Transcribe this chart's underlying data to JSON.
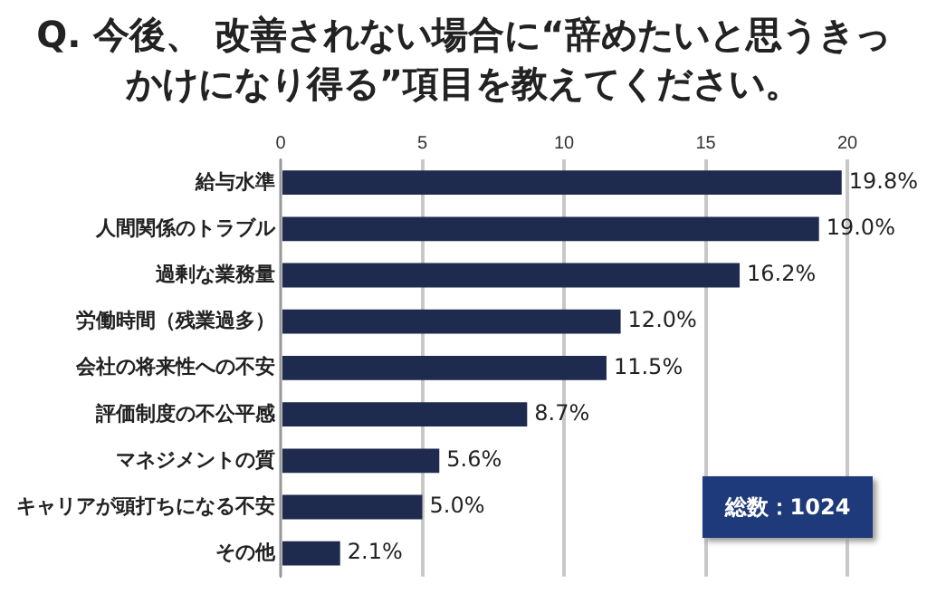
{
  "chart_data": {
    "type": "bar",
    "orientation": "horizontal",
    "title": "Q. 今後、 改善されない場合に“辞めたいと思うきっかけになり得る”項目を教えてください。",
    "categories": [
      "給与水準",
      "人間関係のトラブル",
      "過剰な業務量",
      "労働時間（残業過多）",
      "会社の将来性への不安",
      "評価制度の不公平感",
      "マネジメントの質",
      "キャリアが頭打ちになる不安",
      "その他"
    ],
    "values": [
      19.8,
      19.0,
      16.2,
      12.0,
      11.5,
      8.7,
      5.6,
      5.0,
      2.1
    ],
    "value_labels": [
      "19.8%",
      "19.0%",
      "16.2%",
      "12.0%",
      "11.5%",
      "8.7%",
      "5.6%",
      "5.0%",
      "2.1%"
    ],
    "color": "#1f2a4f",
    "xlim": [
      0,
      20
    ],
    "xticks": [
      0,
      5,
      10,
      15,
      20
    ],
    "grid": "x",
    "legend": false,
    "annotations": [
      "総数：1024"
    ]
  }
}
